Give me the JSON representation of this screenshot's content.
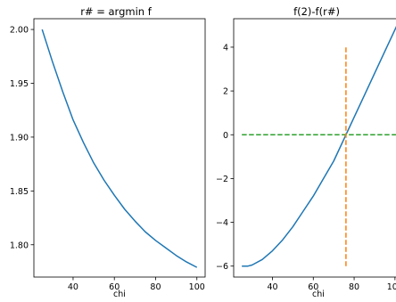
{
  "chart_data": [
    {
      "type": "line",
      "title": "r# = argmin f",
      "xlabel": "chi",
      "ylabel": "",
      "xlim": [
        21,
        104
      ],
      "ylim": [
        1.77,
        2.01
      ],
      "xticks": [
        40,
        60,
        80,
        100
      ],
      "yticks": [
        1.8,
        1.85,
        1.9,
        1.95,
        2.0
      ],
      "xtick_labels": [
        "40",
        "60",
        "80",
        "100"
      ],
      "ytick_labels": [
        "1.80",
        "1.85",
        "1.90",
        "1.95",
        "2.00"
      ],
      "grid": false,
      "series": [
        {
          "color": "#1f77b4",
          "style": "solid",
          "x": [
            25,
            30,
            35,
            40,
            45,
            50,
            55,
            60,
            65,
            70,
            75,
            80,
            85,
            90,
            95,
            100
          ],
          "y": [
            2.0,
            1.97,
            1.942,
            1.916,
            1.895,
            1.876,
            1.86,
            1.846,
            1.833,
            1.822,
            1.812,
            1.804,
            1.797,
            1.79,
            1.784,
            1.779
          ]
        }
      ]
    },
    {
      "type": "line",
      "title": "f(2)-f(r#)",
      "xlabel": "chi",
      "ylabel": "",
      "xlim": [
        21,
        104
      ],
      "ylim": [
        -6.5,
        5.3
      ],
      "xticks": [
        40,
        60,
        80,
        100
      ],
      "yticks": [
        -6,
        -4,
        -2,
        0,
        2,
        4
      ],
      "xtick_labels": [
        "40",
        "60",
        "80",
        "100"
      ],
      "ytick_labels": [
        "−6",
        "−4",
        "−2",
        "0",
        "2",
        "4"
      ],
      "grid": false,
      "series": [
        {
          "color": "#1f77b4",
          "style": "solid",
          "x": [
            25,
            28,
            30,
            35,
            40,
            45,
            50,
            55,
            60,
            65,
            70,
            75,
            76,
            80,
            85,
            90,
            95,
            100,
            104
          ],
          "y": [
            -6.0,
            -6.0,
            -5.95,
            -5.7,
            -5.3,
            -4.8,
            -4.2,
            -3.5,
            -2.8,
            -2.0,
            -1.2,
            -0.2,
            0.0,
            0.8,
            1.8,
            2.8,
            3.8,
            4.8,
            5.6
          ]
        },
        {
          "color": "#2ca02c",
          "style": "dashed",
          "x": [
            25,
            104
          ],
          "y": [
            0,
            0
          ]
        },
        {
          "color": "#ff7f0e",
          "style": "dashed",
          "x": [
            76,
            76
          ],
          "y": [
            -6,
            4
          ]
        }
      ]
    }
  ]
}
